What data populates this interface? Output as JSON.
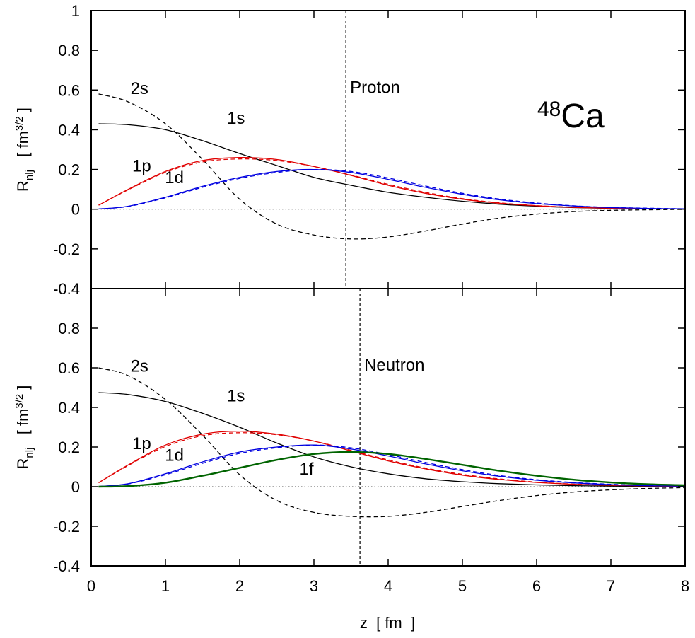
{
  "figure": {
    "xlabel": "z  [ fm  ]",
    "isotope_mass": "48",
    "isotope_symbol": "Ca"
  },
  "chart_data": [
    {
      "type": "line",
      "panel": "top",
      "title": "",
      "annotation": "Proton",
      "xlabel": "z  [ fm  ]",
      "ylabel_main": "R",
      "ylabel_sub": "nlj",
      "ylabel_units_pre": "[ fm",
      "ylabel_units_sup": "3/2",
      "ylabel_units_post": " ]",
      "xlim": [
        0,
        8
      ],
      "ylim": [
        -0.4,
        1.0
      ],
      "xticks": [
        "0",
        "1",
        "2",
        "3",
        "4",
        "5",
        "6",
        "7",
        "8"
      ],
      "yticks": [
        "-0.4",
        "-0.2",
        "0",
        "0.2",
        "0.4",
        "0.6",
        "0.8",
        "1"
      ],
      "vline_x": 3.43,
      "zero_line": true,
      "x": [
        0.1,
        0.5,
        1.0,
        1.5,
        2.0,
        2.5,
        3.0,
        3.5,
        4.0,
        4.5,
        5.0,
        5.5,
        6.0,
        6.5,
        7.0,
        7.5,
        8.0
      ],
      "series": [
        {
          "label": "1s",
          "color": "#000000",
          "dash": "solid",
          "values": [
            0.43,
            0.425,
            0.4,
            0.345,
            0.28,
            0.22,
            0.16,
            0.12,
            0.085,
            0.06,
            0.04,
            0.025,
            0.015,
            0.008,
            0.004,
            0.002,
            0.001
          ]
        },
        {
          "label": "2s",
          "color": "#000000",
          "dash": "dashed",
          "values": [
            0.58,
            0.54,
            0.43,
            0.25,
            0.05,
            -0.075,
            -0.13,
            -0.15,
            -0.14,
            -0.11,
            -0.075,
            -0.045,
            -0.025,
            -0.012,
            -0.006,
            -0.003,
            -0.001
          ]
        },
        {
          "label": "1p",
          "color": "#e00000",
          "dash": "solid",
          "values": [
            0.02,
            0.1,
            0.19,
            0.245,
            0.26,
            0.25,
            0.215,
            0.17,
            0.12,
            0.08,
            0.05,
            0.03,
            0.017,
            0.009,
            0.005,
            0.002,
            0.001
          ]
        },
        {
          "label": "",
          "color": "#e00000",
          "dash": "dashed",
          "values": [
            0.02,
            0.098,
            0.185,
            0.238,
            0.253,
            0.245,
            0.215,
            0.172,
            0.125,
            0.085,
            0.053,
            0.032,
            0.018,
            0.01,
            0.005,
            0.002,
            0.001
          ]
        },
        {
          "label": "1d",
          "color": "#0000e0",
          "dash": "solid",
          "values": [
            0.001,
            0.015,
            0.06,
            0.115,
            0.16,
            0.19,
            0.2,
            0.185,
            0.15,
            0.11,
            0.075,
            0.047,
            0.028,
            0.016,
            0.008,
            0.004,
            0.002
          ]
        },
        {
          "label": "",
          "color": "#0000e0",
          "dash": "dashed",
          "values": [
            0.001,
            0.014,
            0.057,
            0.11,
            0.155,
            0.185,
            0.2,
            0.19,
            0.157,
            0.117,
            0.08,
            0.051,
            0.031,
            0.017,
            0.009,
            0.005,
            0.002
          ]
        }
      ],
      "labels": [
        {
          "text": "2s",
          "x": 0.65,
          "y": 0.58
        },
        {
          "text": "1s",
          "x": 1.95,
          "y": 0.43
        },
        {
          "text": "1p",
          "x": 0.68,
          "y": 0.19
        },
        {
          "text": "1d",
          "x": 1.12,
          "y": 0.13
        }
      ]
    },
    {
      "type": "line",
      "panel": "bottom",
      "title": "",
      "annotation": "Neutron",
      "xlabel": "z  [ fm  ]",
      "ylabel_main": "R",
      "ylabel_sub": "nlj",
      "ylabel_units_pre": "[ fm",
      "ylabel_units_sup": "3/2",
      "ylabel_units_post": " ]",
      "xlim": [
        0,
        8
      ],
      "ylim": [
        -0.4,
        1.0
      ],
      "xticks": [
        "0",
        "1",
        "2",
        "3",
        "4",
        "5",
        "6",
        "7",
        "8"
      ],
      "yticks": [
        "-0.4",
        "-0.2",
        "0",
        "0.2",
        "0.4",
        "0.6",
        "0.8",
        ""
      ],
      "vline_x": 3.62,
      "zero_line": true,
      "x": [
        0.1,
        0.5,
        1.0,
        1.5,
        2.0,
        2.5,
        3.0,
        3.5,
        4.0,
        4.5,
        5.0,
        5.5,
        6.0,
        6.5,
        7.0,
        7.5,
        8.0
      ],
      "series": [
        {
          "label": "1s",
          "color": "#000000",
          "dash": "solid",
          "values": [
            0.475,
            0.465,
            0.43,
            0.37,
            0.3,
            0.22,
            0.15,
            0.1,
            0.065,
            0.04,
            0.025,
            0.015,
            0.009,
            0.005,
            0.003,
            0.002,
            0.001
          ]
        },
        {
          "label": "2s",
          "color": "#000000",
          "dash": "dashed",
          "values": [
            0.6,
            0.56,
            0.44,
            0.26,
            0.06,
            -0.07,
            -0.13,
            -0.15,
            -0.15,
            -0.13,
            -0.1,
            -0.07,
            -0.045,
            -0.027,
            -0.016,
            -0.009,
            -0.005
          ]
        },
        {
          "label": "1p",
          "color": "#e00000",
          "dash": "solid",
          "values": [
            0.02,
            0.11,
            0.21,
            0.265,
            0.28,
            0.265,
            0.23,
            0.18,
            0.13,
            0.09,
            0.058,
            0.036,
            0.021,
            0.012,
            0.007,
            0.004,
            0.002
          ]
        },
        {
          "label": "",
          "color": "#e00000",
          "dash": "dashed",
          "values": [
            0.02,
            0.107,
            0.203,
            0.257,
            0.272,
            0.262,
            0.23,
            0.183,
            0.135,
            0.094,
            0.062,
            0.039,
            0.023,
            0.013,
            0.007,
            0.004,
            0.002
          ]
        },
        {
          "label": "1d",
          "color": "#0000e0",
          "dash": "solid",
          "values": [
            0.001,
            0.015,
            0.065,
            0.125,
            0.175,
            0.2,
            0.21,
            0.19,
            0.155,
            0.115,
            0.08,
            0.052,
            0.032,
            0.019,
            0.01,
            0.005,
            0.003
          ]
        },
        {
          "label": "",
          "color": "#0000e0",
          "dash": "dashed",
          "values": [
            0.001,
            0.014,
            0.06,
            0.118,
            0.168,
            0.196,
            0.21,
            0.196,
            0.162,
            0.122,
            0.086,
            0.056,
            0.035,
            0.021,
            0.012,
            0.006,
            0.003
          ]
        },
        {
          "label": "1f",
          "color": "#006400",
          "dash": "solid",
          "width": 2.4,
          "values": [
            0.0,
            0.003,
            0.02,
            0.055,
            0.095,
            0.135,
            0.165,
            0.175,
            0.165,
            0.14,
            0.11,
            0.08,
            0.055,
            0.035,
            0.021,
            0.012,
            0.007
          ]
        }
      ],
      "labels": [
        {
          "text": "2s",
          "x": 0.65,
          "y": 0.58
        },
        {
          "text": "1s",
          "x": 1.95,
          "y": 0.43
        },
        {
          "text": "1p",
          "x": 0.68,
          "y": 0.19
        },
        {
          "text": "1d",
          "x": 1.12,
          "y": 0.13
        },
        {
          "text": "1f",
          "x": 2.9,
          "y": 0.06
        }
      ]
    }
  ]
}
